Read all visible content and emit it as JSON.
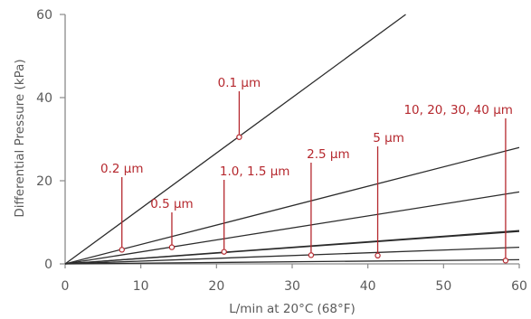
{
  "chart_data": {
    "type": "line",
    "xlabel": "L/min at 20°C (68°F)",
    "ylabel": "Differential Pressure (kPa)",
    "xlim": [
      0,
      60
    ],
    "ylim": [
      0,
      60
    ],
    "xticks": [
      0,
      10,
      20,
      30,
      40,
      50,
      60
    ],
    "yticks": [
      0,
      20,
      40,
      60
    ],
    "grid": false,
    "legend": "none",
    "series": [
      {
        "name": "0.1 µm",
        "x": [
          0,
          45
        ],
        "y": [
          0,
          60
        ]
      },
      {
        "name": "0.2 µm",
        "x": [
          0,
          60
        ],
        "y": [
          0,
          28
        ]
      },
      {
        "name": "0.5 µm",
        "x": [
          0,
          60
        ],
        "y": [
          0,
          17.3
        ]
      },
      {
        "name": "1.0, 1.5 µm",
        "x": [
          0,
          60
        ],
        "y": [
          0,
          8
        ]
      },
      {
        "name": "2.5 µm",
        "x": [
          0,
          60
        ],
        "y": [
          0,
          7.8
        ]
      },
      {
        "name": "5 µm",
        "x": [
          0,
          60
        ],
        "y": [
          0,
          4
        ]
      },
      {
        "name": "10, 20, 30, 40 µm",
        "x": [
          0,
          60
        ],
        "y": [
          0,
          1
        ]
      }
    ],
    "annotations": [
      {
        "text": "0.1 µm",
        "x": 23,
        "y": 30.5
      },
      {
        "text": "0.2 µm",
        "x": 7.5,
        "y": 3.4
      },
      {
        "text": "0.5 µm",
        "x": 14.1,
        "y": 4.0
      },
      {
        "text": "1.0, 1.5 µm",
        "x": 21,
        "y": 2.9
      },
      {
        "text": "2.5 µm",
        "x": 32.5,
        "y": 2.1
      },
      {
        "text": "5 µm",
        "x": 41.3,
        "y": 2.0
      },
      {
        "text": "10, 20, 30, 40 µm",
        "x": 58.2,
        "y": 0.8
      }
    ]
  },
  "colors": {
    "line": "#2b2b2b",
    "axis": "#8a8a8a",
    "annotation": "#b5282e",
    "text": "#5a5a5a"
  }
}
